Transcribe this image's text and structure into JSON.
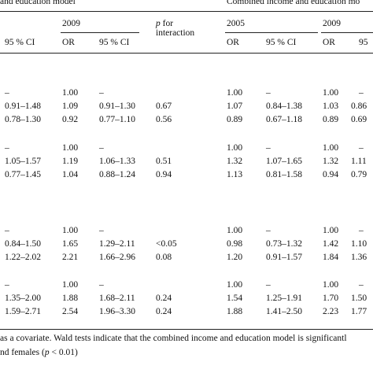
{
  "header": {
    "model_left": "and education model",
    "model_right": "Combined income and education mo",
    "year_2009_left": "2009",
    "year_2005_right": "2005",
    "year_2009_right": "2009",
    "p_for": "p",
    "p_for_rest": " for",
    "interaction": "interaction",
    "col_ci_left": "95 % CI",
    "col_or_left": "OR",
    "col_ci_mid": "95 % CI",
    "col_or_r1": "OR",
    "col_ci_r1": "95 % CI",
    "col_or_r2": "OR",
    "col_ci_r2": "95"
  },
  "rows": [
    {
      "c1": "–",
      "or09": "1.00",
      "ci09": "–",
      "p": "",
      "or05r": "1.00",
      "ci05r": "–",
      "or09r": "1.00",
      "ci09r": "–"
    },
    {
      "c1": "0.91–1.48",
      "or09": "1.09",
      "ci09": "0.91–1.30",
      "p": "0.67",
      "or05r": "1.07",
      "ci05r": "0.84–1.38",
      "or09r": "1.03",
      "ci09r": "0.86"
    },
    {
      "c1": "0.78–1.30",
      "or09": "0.92",
      "ci09": "0.77–1.10",
      "p": "0.56",
      "or05r": "0.89",
      "ci05r": "0.67–1.18",
      "or09r": "0.89",
      "ci09r": "0.69"
    },
    {
      "c1": "–",
      "or09": "1.00",
      "ci09": "–",
      "p": "",
      "or05r": "1.00",
      "ci05r": "–",
      "or09r": "1.00",
      "ci09r": "–"
    },
    {
      "c1": "1.05–1.57",
      "or09": "1.19",
      "ci09": "1.06–1.33",
      "p": "0.51",
      "or05r": "1.32",
      "ci05r": "1.07–1.65",
      "or09r": "1.32",
      "ci09r": "1.11"
    },
    {
      "c1": "0.77–1.45",
      "or09": "1.04",
      "ci09": "0.88–1.24",
      "p": "0.94",
      "or05r": "1.13",
      "ci05r": "0.81–1.58",
      "or09r": "0.94",
      "ci09r": "0.79"
    },
    {
      "c1": "–",
      "or09": "1.00",
      "ci09": "–",
      "p": "",
      "or05r": "1.00",
      "ci05r": "–",
      "or09r": "1.00",
      "ci09r": "–"
    },
    {
      "c1": "0.84–1.50",
      "or09": "1.65",
      "ci09": "1.29–2.11",
      "p": "<0.05",
      "or05r": "0.98",
      "ci05r": "0.73–1.32",
      "or09r": "1.42",
      "ci09r": "1.10"
    },
    {
      "c1": "1.22–2.02",
      "or09": "2.21",
      "ci09": "1.66–2.96",
      "p": "0.08",
      "or05r": "1.20",
      "ci05r": "0.91–1.57",
      "or09r": "1.84",
      "ci09r": "1.36"
    },
    {
      "c1": "–",
      "or09": "1.00",
      "ci09": "–",
      "p": "",
      "or05r": "1.00",
      "ci05r": "–",
      "or09r": "1.00",
      "ci09r": "–"
    },
    {
      "c1": "1.35–2.00",
      "or09": "1.88",
      "ci09": "1.68–2.11",
      "p": "0.24",
      "or05r": "1.54",
      "ci05r": "1.25–1.91",
      "or09r": "1.70",
      "ci09r": "1.50"
    },
    {
      "c1": "1.59–2.71",
      "or09": "2.54",
      "ci09": "1.96–3.30",
      "p": "0.24",
      "or05r": "1.88",
      "ci05r": "1.41–2.50",
      "or09r": "2.23",
      "ci09r": "1.77"
    }
  ],
  "footnote": {
    "line1": "as a covariate. Wald tests indicate that the combined income and education model is significantl",
    "line2_pre": "nd females (",
    "line2_p": "p",
    "line2_post": " < 0.01)"
  }
}
